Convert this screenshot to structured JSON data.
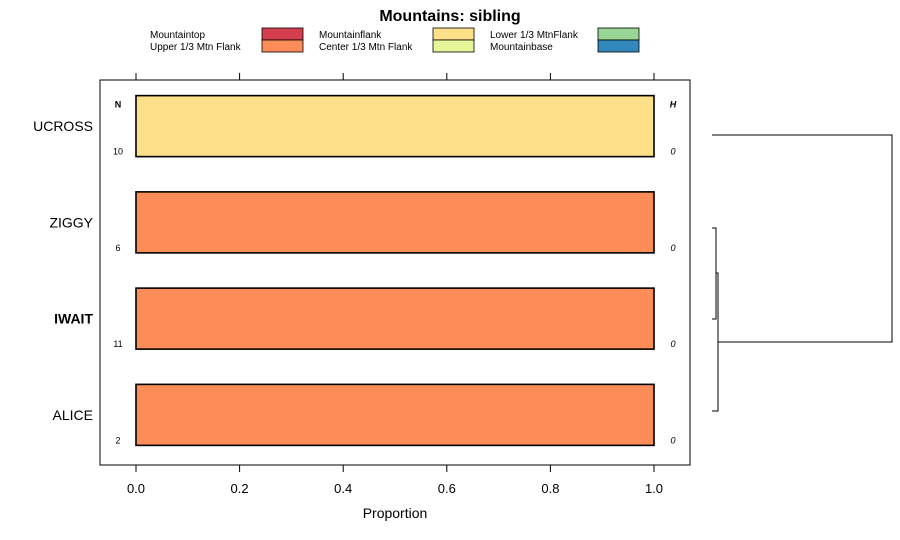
{
  "chart_data": {
    "type": "bar",
    "orientation": "horizontal",
    "stacked": true,
    "title": "Mountains: sibling",
    "xlabel": "Proportion",
    "ylabel": "",
    "xlim": [
      -0.07,
      1.07
    ],
    "xticks": [
      0.0,
      0.2,
      0.4,
      0.6,
      0.8,
      1.0
    ],
    "xtick_labels": [
      "0.0",
      "0.2",
      "0.4",
      "0.6",
      "0.8",
      "1.0"
    ],
    "legend_position": "top",
    "legend": [
      {
        "name": "Mountaintop",
        "color": "#D53E4F"
      },
      {
        "name": "Upper 1/3 Mtn Flank",
        "color": "#FC8D59"
      },
      {
        "name": "Mountainflank",
        "color": "#FEE08B"
      },
      {
        "name": "Center 1/3 Mtn Flank",
        "color": "#E6F598"
      },
      {
        "name": "Lower 1/3 MtnFlank",
        "color": "#99D594"
      },
      {
        "name": "Mountainbase",
        "color": "#3288BD"
      }
    ],
    "column_headers": {
      "n": "N",
      "h": "H"
    },
    "rows": [
      {
        "label": "UCROSS",
        "bold": false,
        "n": "10",
        "h": "0",
        "segments": [
          {
            "category": "Mountainflank",
            "value": 1.0
          }
        ]
      },
      {
        "label": "ZIGGY",
        "bold": false,
        "n": "6",
        "h": "0",
        "segments": [
          {
            "category": "Upper 1/3 Mtn Flank",
            "value": 1.0
          }
        ]
      },
      {
        "label": "IWAIT",
        "bold": true,
        "n": "11",
        "h": "0",
        "segments": [
          {
            "category": "Upper 1/3 Mtn Flank",
            "value": 1.0
          }
        ]
      },
      {
        "label": "ALICE",
        "bold": false,
        "n": "2",
        "h": "0",
        "segments": [
          {
            "category": "Upper 1/3 Mtn Flank",
            "value": 1.0
          }
        ]
      }
    ],
    "dendrogram": true
  }
}
